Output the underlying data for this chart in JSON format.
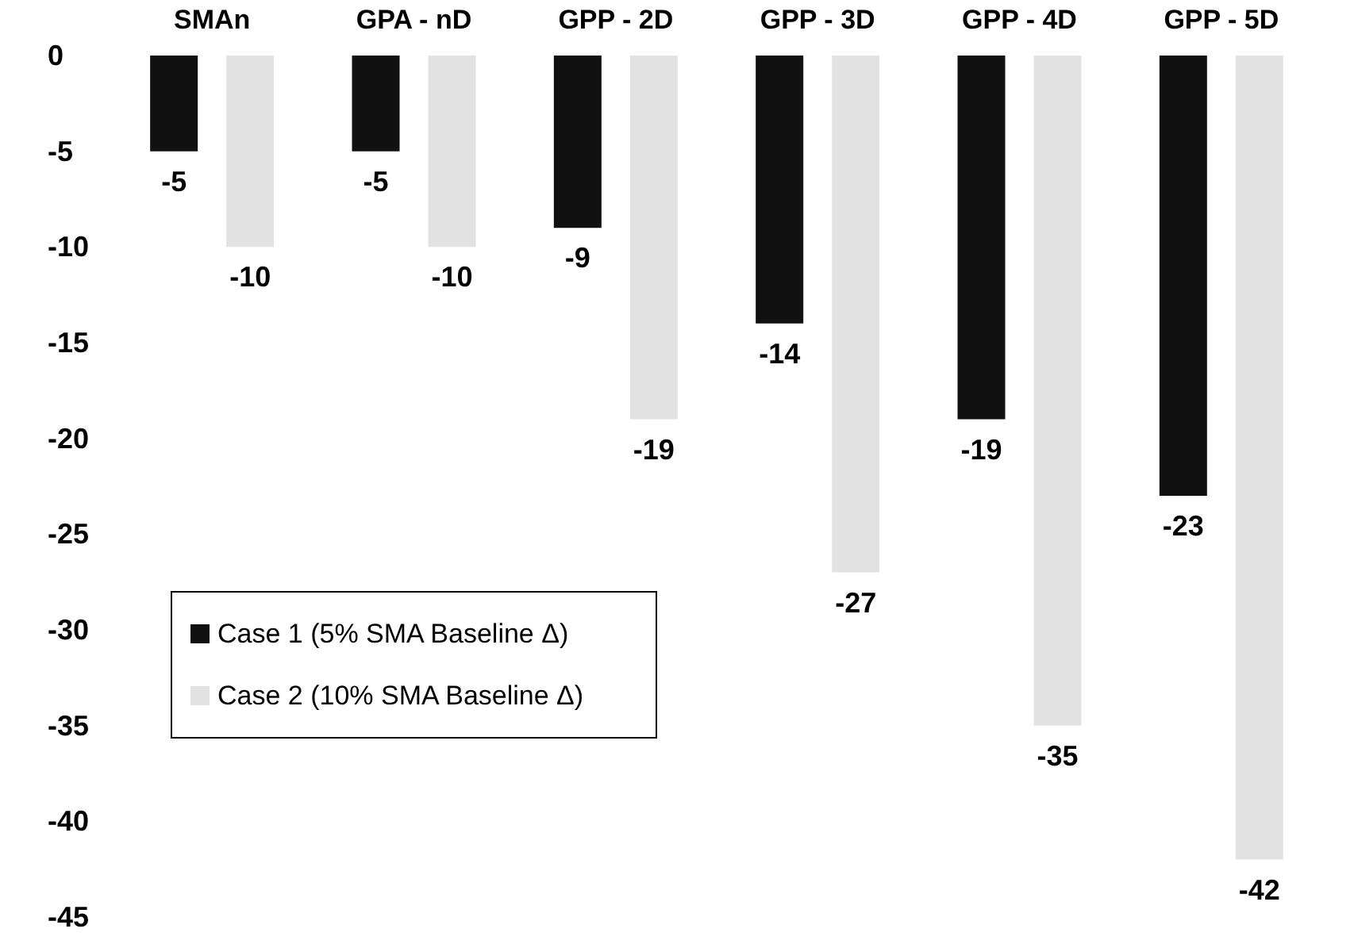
{
  "chart_data": {
    "type": "bar",
    "categories": [
      "SMAn",
      "GPA - nD",
      "GPP - 2D",
      "GPP - 3D",
      "GPP - 4D",
      "GPP - 5D"
    ],
    "series": [
      {
        "name": "Case 1 (5% SMA Baseline Δ)",
        "color": "#111111",
        "values": [
          -5,
          -5,
          -9,
          -14,
          -19,
          -23
        ]
      },
      {
        "name": "Case 2 (10% SMA Baseline Δ)",
        "color": "#e2e2e2",
        "values": [
          -10,
          -10,
          -19,
          -27,
          -35,
          -42
        ]
      }
    ],
    "ylim": [
      -45,
      0
    ],
    "yticks": [
      0,
      -5,
      -10,
      -15,
      -20,
      -25,
      -30,
      -35,
      -40,
      -45
    ],
    "data_labels": true,
    "grid": false,
    "legend": "bottom left"
  }
}
